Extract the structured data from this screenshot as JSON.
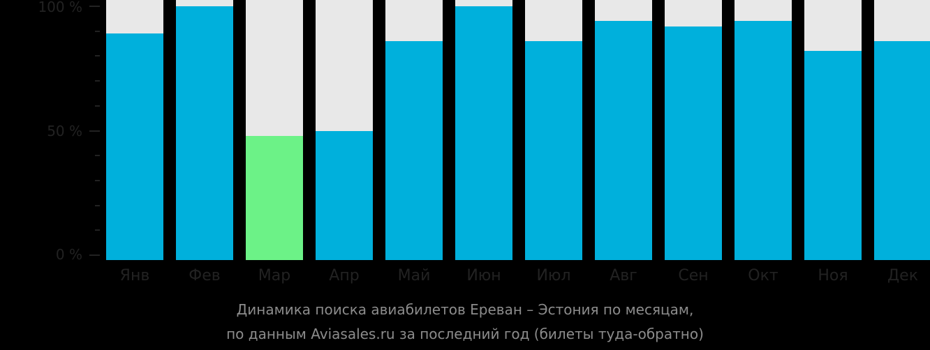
{
  "chart_data": {
    "type": "bar",
    "title": "Динамика поиска авиабилетов Ереван – Эстония по месяцам,",
    "subtitle": "по данным Aviasales.ru за последний год (билеты туда-обратно)",
    "xlabel": "",
    "ylabel": "",
    "ylim": [
      0,
      100
    ],
    "yticks": [
      "100 %",
      "50 %",
      "0 %"
    ],
    "categories": [
      "Янв",
      "Фев",
      "Мар",
      "Апр",
      "Май",
      "Июн",
      "Июл",
      "Авг",
      "Сен",
      "Окт",
      "Ноя",
      "Дек"
    ],
    "values": [
      89,
      100,
      48,
      50,
      86,
      100,
      86,
      94,
      92,
      94,
      82,
      86
    ],
    "highlight_index": 2,
    "colors": {
      "bar": "#00b0dc",
      "highlight": "#6cf287",
      "background_track": "#e8e8e8",
      "page_bg": "#000000"
    },
    "legend": null,
    "grid": false
  }
}
